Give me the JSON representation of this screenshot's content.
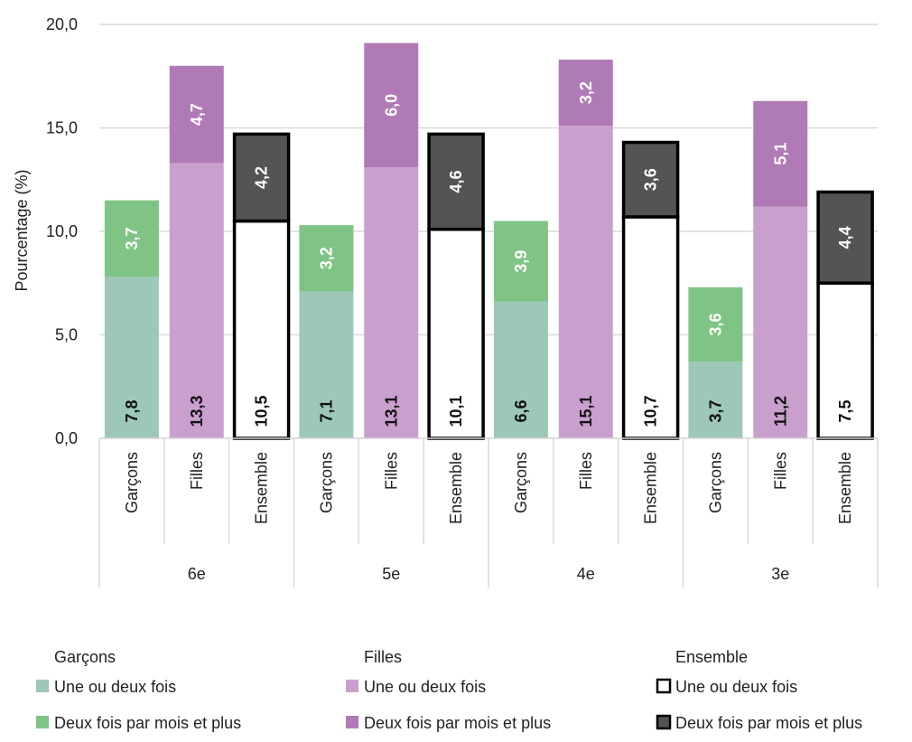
{
  "chart_data": {
    "type": "bar",
    "stacked": true,
    "ylabel": "Pourcentage (%)",
    "ylim": [
      0,
      20
    ],
    "yticks": [
      "0,0",
      "5,0",
      "10,0",
      "15,0",
      "20,0"
    ],
    "grid": true,
    "legend_position": "bottom",
    "groups": [
      "6e",
      "5e",
      "4e",
      "3e"
    ],
    "categories": [
      "Garçons",
      "Filles",
      "Ensemble"
    ],
    "series": [
      {
        "name": "Une ou deux fois",
        "values": [
          [
            7.8,
            13.3,
            10.5
          ],
          [
            7.1,
            13.1,
            10.1
          ],
          [
            6.6,
            15.1,
            10.7
          ],
          [
            3.7,
            11.2,
            7.5
          ]
        ],
        "labels": [
          [
            "7,8",
            "13,3",
            "10,5"
          ],
          [
            "7,1",
            "13,1",
            "10,1"
          ],
          [
            "6,6",
            "15,1",
            "10,7"
          ],
          [
            "3,7",
            "11,2",
            "7,5"
          ]
        ]
      },
      {
        "name": "Deux fois par mois et plus",
        "values": [
          [
            3.7,
            4.7,
            4.2
          ],
          [
            3.2,
            6.0,
            4.6
          ],
          [
            3.9,
            3.2,
            3.6
          ],
          [
            3.6,
            5.1,
            4.4
          ]
        ],
        "labels": [
          [
            "3,7",
            "4,7",
            "4,2"
          ],
          [
            "3,2",
            "6,0",
            "4,6"
          ],
          [
            "3,9",
            "3,2",
            "3,6"
          ],
          [
            "3,6",
            "5,1",
            "4,4"
          ]
        ]
      }
    ],
    "colors": {
      "Garçons": [
        "#9dc8b7",
        "#80c485"
      ],
      "Filles": [
        "#c9a0cd",
        "#b07ab6"
      ],
      "Ensemble": [
        "#ffffff",
        "#545454"
      ]
    },
    "legend": [
      {
        "heading": "Garçons",
        "items": [
          "Une ou deux fois",
          "Deux fois par mois et plus"
        ]
      },
      {
        "heading": "Filles",
        "items": [
          "Une ou deux fois",
          "Deux fois par mois et plus"
        ]
      },
      {
        "heading": "Ensemble",
        "items": [
          "Une ou deux fois",
          "Deux fois par mois et plus"
        ]
      }
    ]
  }
}
